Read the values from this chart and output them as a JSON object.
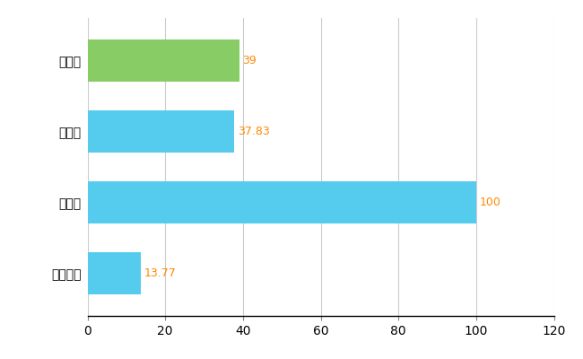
{
  "categories": [
    "全国平均",
    "県最大",
    "県平均",
    "多摩区"
  ],
  "values": [
    13.77,
    100,
    37.83,
    39
  ],
  "bar_colors": [
    "#55ccee",
    "#55ccee",
    "#55ccee",
    "#88cc66"
  ],
  "value_labels": [
    "13.77",
    "100",
    "37.83",
    "39"
  ],
  "xlim": [
    0,
    120
  ],
  "xticks": [
    0,
    20,
    40,
    60,
    80,
    100,
    120
  ],
  "bar_height": 0.6,
  "grid_color": "#cccccc",
  "bg_color": "#ffffff",
  "label_color": "#ff8800",
  "label_fontsize": 9,
  "tick_fontsize": 10,
  "ytick_fontsize": 10
}
